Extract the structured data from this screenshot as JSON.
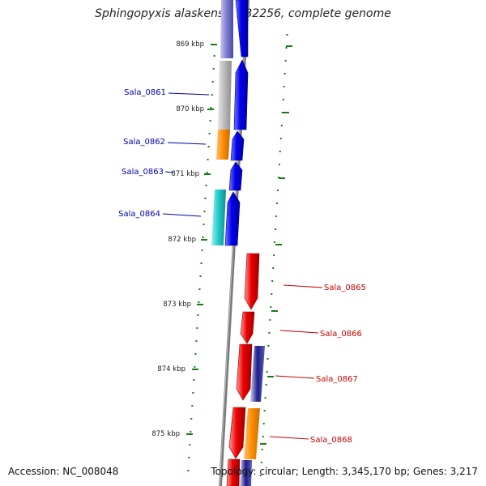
{
  "title": "Sphingopyxis alaskensis RB2256, complete genome",
  "accession": "Accession: NC_008048",
  "summary": "Topology: circular; Length: 3,345,170 bp; Genes: 3,217",
  "scale_labels": [
    "869 kbp",
    "870 kbp",
    "871 kbp",
    "872 kbp",
    "873 kbp",
    "874 kbp",
    "875 kbp"
  ],
  "genes_left": [
    "Sala_0861",
    "Sala_0862",
    "Sala_0863",
    "Sala_0864"
  ],
  "genes_right": [
    "Sala_0865",
    "Sala_0866",
    "Sala_0867",
    "Sala_0868"
  ],
  "colors": {
    "forward_cds": "#0000ee",
    "reverse_cds": "#ee0000",
    "backbone": "#808080",
    "ticks": "#1a7a1a",
    "label_left": "#0000aa",
    "label_right": "#cc0000",
    "feature_lavender": "#7b7bd0",
    "feature_gray": "#b8b8b8",
    "feature_orange": "#ff8c00",
    "feature_cyan": "#20c8c8",
    "feature_navy": "#1a1a8c"
  }
}
